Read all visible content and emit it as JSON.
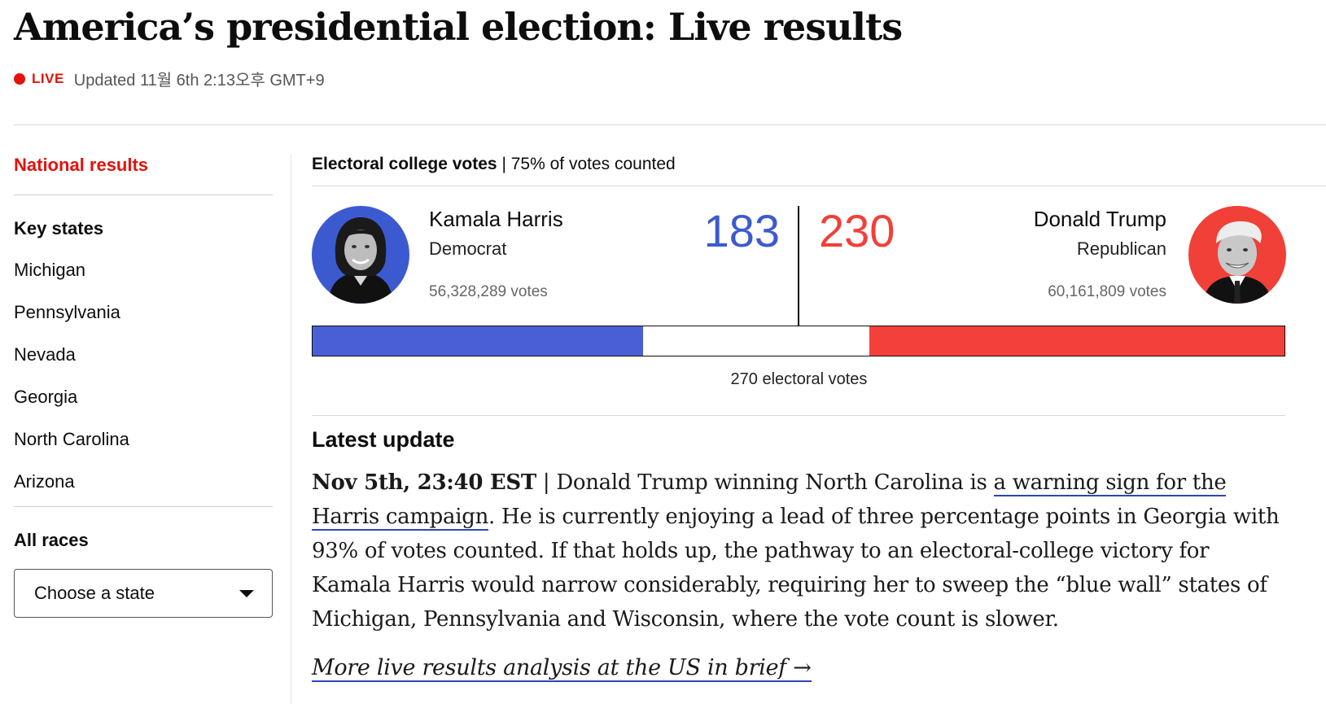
{
  "page": {
    "title": "America’s presidential election: Live results",
    "live_label": "LIVE",
    "updated_text": "Updated 11월 6th 2:13오후 GMT+9"
  },
  "sidebar": {
    "national_label": "National results",
    "key_states_heading": "Key states",
    "key_states": [
      "Michigan",
      "Pennsylvania",
      "Nevada",
      "Georgia",
      "North Carolina",
      "Arizona"
    ],
    "all_races_heading": "All races",
    "state_select": {
      "selected": "Choose a state"
    }
  },
  "electoral": {
    "header_bold": "Electoral college votes",
    "header_rest": " | 75% of votes counted",
    "threshold_label": "270 electoral votes",
    "total_ev": 538,
    "dem": {
      "name": "Kamala Harris",
      "party": "Democrat",
      "ev": 183,
      "popular_votes": "56,328,289 votes",
      "color": "#3c5ad0"
    },
    "rep": {
      "name": "Donald Trump",
      "party": "Republican",
      "ev": 230,
      "popular_votes": "60,161,809 votes",
      "color": "#f04038"
    }
  },
  "latest": {
    "heading": "Latest update",
    "timestamp": "Nov 5th, 23:40 EST",
    "separator": " | ",
    "text_before_link": "Donald Trump winning North Carolina is ",
    "link_text": "a warning sign for the Harris campaign",
    "text_after_link": ". He is currently enjoying a lead of three percentage points in Georgia with 93% of votes counted. If that holds up, the pathway to an electoral-college victory for Kamala Harris would narrow considerably, requiring her to sweep the “blue wall” states of Michigan, Pennsylvania and Wisconsin, where the vote count is slower.",
    "more_link": "More live results analysis at the US in brief →"
  }
}
